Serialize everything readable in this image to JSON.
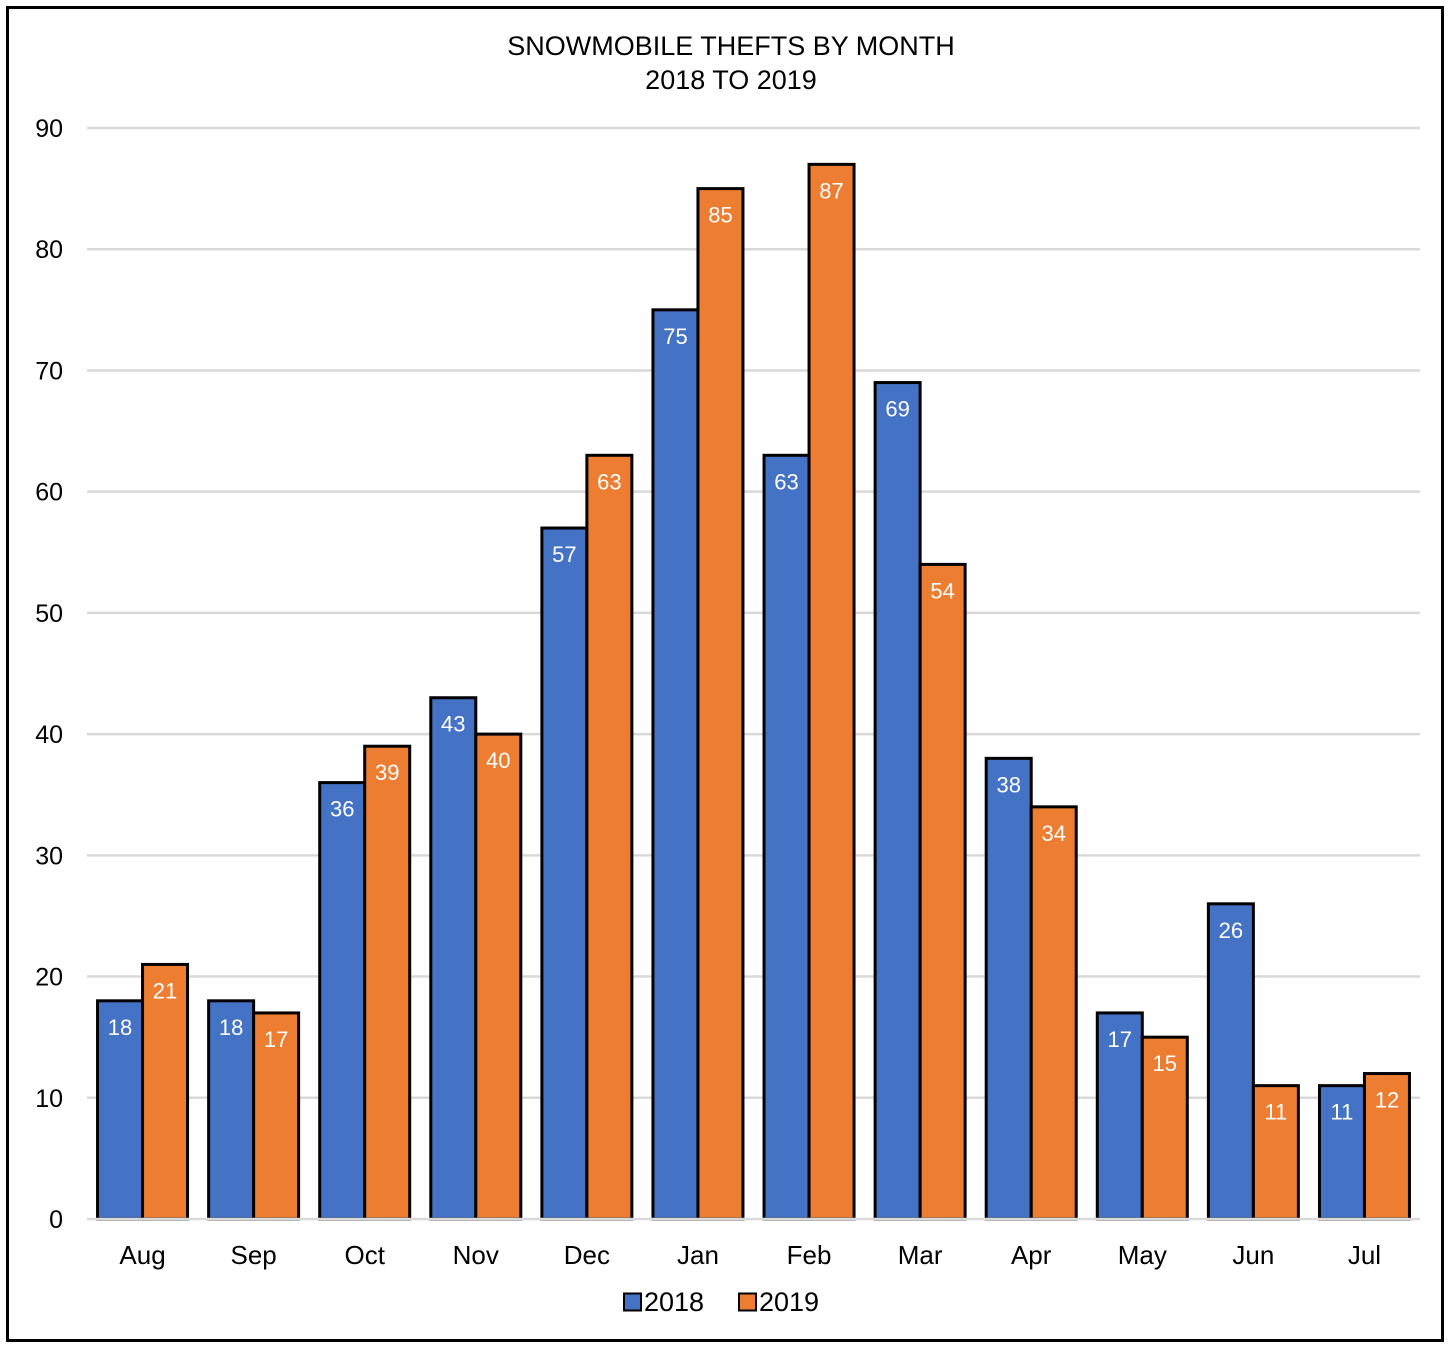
{
  "chart_data": {
    "type": "bar",
    "title": "SNOWMOBILE THEFTS BY MONTH",
    "subtitle": "2018 TO 2019",
    "categories": [
      "Aug",
      "Sep",
      "Oct",
      "Nov",
      "Dec",
      "Jan",
      "Feb",
      "Mar",
      "Apr",
      "May",
      "Jun",
      "Jul"
    ],
    "series": [
      {
        "name": "2018",
        "color": "#4472C4",
        "values": [
          18,
          18,
          36,
          43,
          57,
          75,
          63,
          69,
          38,
          17,
          26,
          11
        ]
      },
      {
        "name": "2019",
        "color": "#ED7D31",
        "values": [
          21,
          17,
          39,
          40,
          63,
          85,
          87,
          54,
          34,
          15,
          11,
          12
        ]
      }
    ],
    "ylim": [
      0,
      90
    ],
    "yticks": [
      0,
      10,
      20,
      30,
      40,
      50,
      60,
      70,
      80,
      90
    ],
    "xlabel": "",
    "ylabel": "",
    "grid": true,
    "legend": "bottom",
    "data_labels": true
  }
}
